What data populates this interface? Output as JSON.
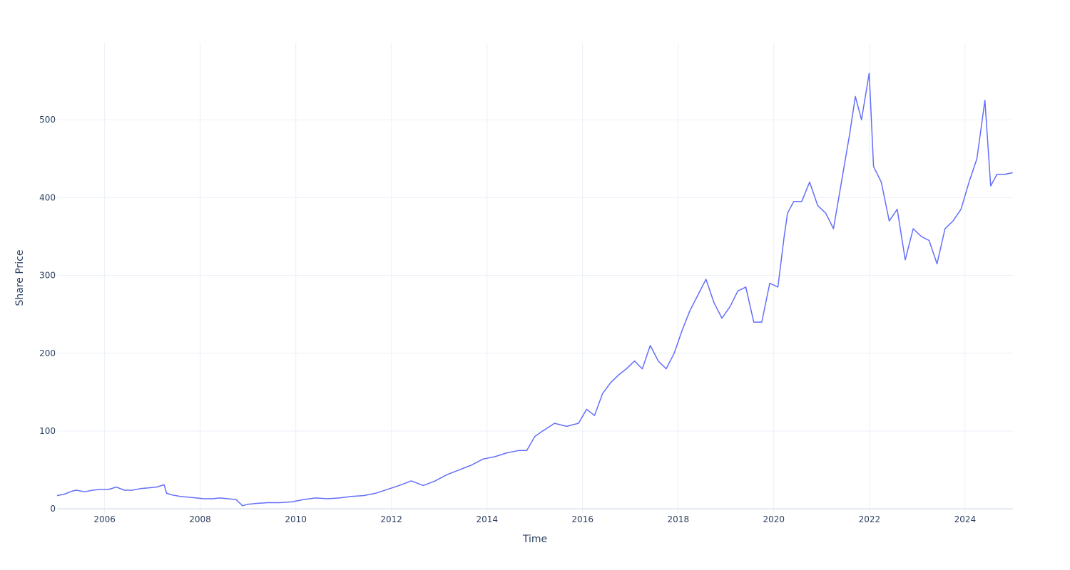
{
  "chart_data": {
    "type": "line",
    "title": "",
    "xlabel": "Time",
    "ylabel": "Share Price",
    "x_range": [
      "2005-01-03",
      "2025-01-01"
    ],
    "ylim": [
      -5.3,
      599
    ],
    "x_ticks": [
      "2006",
      "2008",
      "2010",
      "2012",
      "2014",
      "2016",
      "2018",
      "2020",
      "2022",
      "2024"
    ],
    "y_ticks": [
      0,
      100,
      200,
      300,
      400,
      500
    ],
    "grid": true,
    "legend": "none",
    "line_color": "#636efa",
    "grid_color": "#ebf0f8",
    "series": [
      {
        "x": [
          "2005-01-03",
          "2005-03-01",
          "2005-05-01",
          "2005-06-01",
          "2005-08-01",
          "2005-10-01",
          "2005-12-01",
          "2006-02-01",
          "2006-04-01",
          "2006-06-01",
          "2006-08-01",
          "2006-10-01",
          "2006-12-01",
          "2007-02-01",
          "2007-04-01",
          "2007-04-20",
          "2007-06-01",
          "2007-08-01",
          "2007-10-01",
          "2007-12-01",
          "2008-02-01",
          "2008-04-01",
          "2008-06-01",
          "2008-08-01",
          "2008-10-01",
          "2008-11-20",
          "2009-01-01",
          "2009-03-01",
          "2009-06-01",
          "2009-09-01",
          "2009-12-01",
          "2010-03-01",
          "2010-06-01",
          "2010-09-01",
          "2010-12-01",
          "2011-03-01",
          "2011-06-01",
          "2011-09-01",
          "2011-12-01",
          "2012-03-01",
          "2012-06-01",
          "2012-09-01",
          "2012-12-01",
          "2013-03-01",
          "2013-06-01",
          "2013-09-01",
          "2013-12-01",
          "2014-03-01",
          "2014-06-01",
          "2014-09-01",
          "2014-11-01",
          "2015-01-01",
          "2015-03-01",
          "2015-06-01",
          "2015-09-01",
          "2015-12-01",
          "2016-02-01",
          "2016-04-01",
          "2016-06-01",
          "2016-08-01",
          "2016-10-01",
          "2016-12-01",
          "2017-02-01",
          "2017-04-01",
          "2017-06-01",
          "2017-08-01",
          "2017-10-01",
          "2017-12-01",
          "2018-02-01",
          "2018-04-01",
          "2018-06-01",
          "2018-08-01",
          "2018-10-01",
          "2018-12-01",
          "2019-02-01",
          "2019-04-01",
          "2019-06-01",
          "2019-08-01",
          "2019-10-01",
          "2019-12-01",
          "2020-02-01",
          "2020-03-20",
          "2020-04-15",
          "2020-06-01",
          "2020-08-01",
          "2020-10-01",
          "2020-12-01",
          "2021-02-01",
          "2021-04-01",
          "2021-06-01",
          "2021-08-01",
          "2021-09-15",
          "2021-11-01",
          "2021-12-30",
          "2022-02-01",
          "2022-04-01",
          "2022-06-01",
          "2022-08-01",
          "2022-10-01",
          "2022-12-01",
          "2023-02-01",
          "2023-04-01",
          "2023-06-01",
          "2023-08-01",
          "2023-10-01",
          "2023-12-01",
          "2024-02-01",
          "2024-04-01",
          "2024-06-01",
          "2024-07-15",
          "2024-09-01",
          "2024-11-01",
          "2024-12-31"
        ],
        "y": [
          17,
          19,
          23,
          24,
          22,
          24,
          25,
          25,
          28,
          24,
          24,
          26,
          27,
          28,
          31,
          20,
          18,
          16,
          15,
          14,
          13,
          13,
          14,
          13,
          12,
          4,
          6,
          7,
          8,
          8,
          9,
          12,
          14,
          13,
          14,
          16,
          17,
          20,
          25,
          30,
          36,
          30,
          36,
          44,
          50,
          56,
          64,
          67,
          72,
          75,
          75,
          93,
          100,
          110,
          106,
          110,
          128,
          120,
          148,
          162,
          172,
          180,
          190,
          180,
          210,
          190,
          180,
          200,
          230,
          255,
          275,
          295,
          265,
          245,
          260,
          280,
          285,
          240,
          240,
          290,
          285,
          350,
          380,
          395,
          395,
          420,
          390,
          380,
          360,
          420,
          480,
          530,
          500,
          560,
          440,
          420,
          370,
          385,
          320,
          360,
          350,
          345,
          315,
          360,
          370,
          385,
          420,
          450,
          525,
          415,
          430,
          430,
          432
        ]
      }
    ]
  }
}
